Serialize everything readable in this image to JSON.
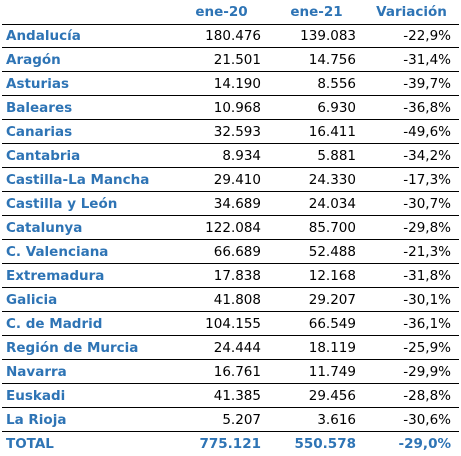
{
  "headers": {
    "name": "",
    "ene20": "ene-20",
    "ene21": "ene-21",
    "variation": "Variación"
  },
  "rows": [
    {
      "name": "Andalucía",
      "ene20": "180.476",
      "ene21": "139.083",
      "variation": "-22,9%"
    },
    {
      "name": "Aragón",
      "ene20": "21.501",
      "ene21": "14.756",
      "variation": "-31,4%"
    },
    {
      "name": "Asturias",
      "ene20": "14.190",
      "ene21": "8.556",
      "variation": "-39,7%"
    },
    {
      "name": "Baleares",
      "ene20": "10.968",
      "ene21": "6.930",
      "variation": "-36,8%"
    },
    {
      "name": "Canarias",
      "ene20": "32.593",
      "ene21": "16.411",
      "variation": "-49,6%"
    },
    {
      "name": "Cantabria",
      "ene20": "8.934",
      "ene21": "5.881",
      "variation": "-34,2%"
    },
    {
      "name": "Castilla-La Mancha",
      "ene20": "29.410",
      "ene21": "24.330",
      "variation": "-17,3%"
    },
    {
      "name": "Castilla y León",
      "ene20": "34.689",
      "ene21": "24.034",
      "variation": "-30,7%"
    },
    {
      "name": "Catalunya",
      "ene20": "122.084",
      "ene21": "85.700",
      "variation": "-29,8%"
    },
    {
      "name": "C. Valenciana",
      "ene20": "66.689",
      "ene21": "52.488",
      "variation": "-21,3%"
    },
    {
      "name": "Extremadura",
      "ene20": "17.838",
      "ene21": "12.168",
      "variation": "-31,8%"
    },
    {
      "name": "Galicia",
      "ene20": "41.808",
      "ene21": "29.207",
      "variation": "-30,1%"
    },
    {
      "name": "C. de Madrid",
      "ene20": "104.155",
      "ene21": "66.549",
      "variation": "-36,1%"
    },
    {
      "name": "Región de Murcia",
      "ene20": "24.444",
      "ene21": "18.119",
      "variation": "-25,9%"
    },
    {
      "name": "Navarra",
      "ene20": "16.761",
      "ene21": "11.749",
      "variation": "-29,9%"
    },
    {
      "name": "Euskadi",
      "ene20": "41.385",
      "ene21": "29.456",
      "variation": "-28,8%"
    },
    {
      "name": "La Rioja",
      "ene20": "5.207",
      "ene21": "3.616",
      "variation": "-30,6%"
    }
  ],
  "total": {
    "name": "TOTAL",
    "ene20": "775.121",
    "ene21": "550.578",
    "variation": "-29,0%"
  },
  "colors": {
    "accent": "#2e74b5",
    "text": "#000000",
    "border": "#000000"
  }
}
